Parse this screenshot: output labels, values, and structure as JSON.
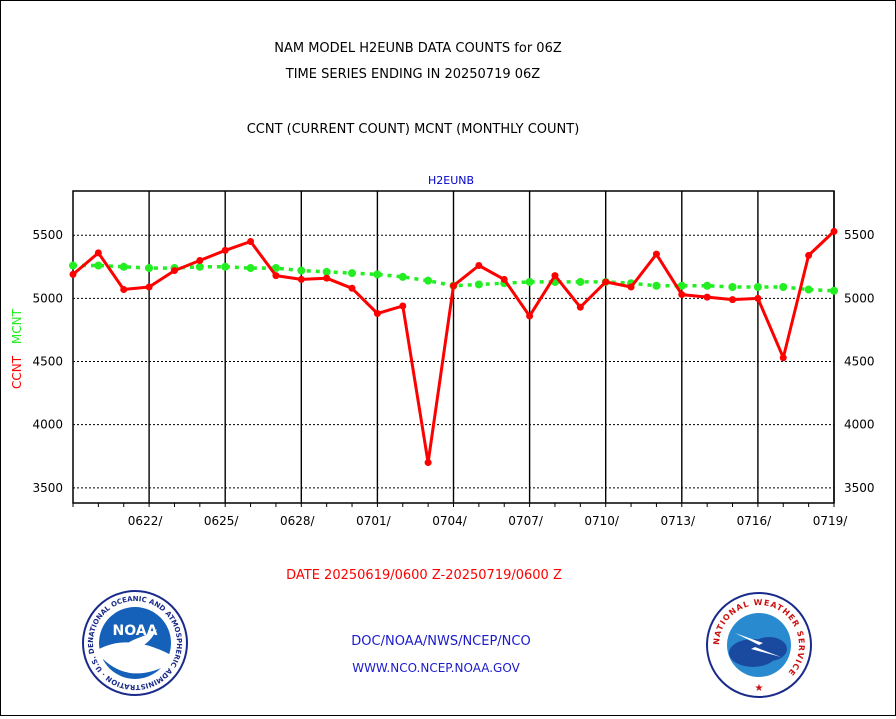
{
  "header": {
    "title_line1": "NAM MODEL H2EUNB DATA COUNTS for 06Z",
    "title_line2": "TIME SERIES ENDING IN 20250719 06Z",
    "subtitle": "CCNT (CURRENT COUNT) MCNT (MONTHLY COUNT)"
  },
  "footer": {
    "date_range": "DATE 20250619/0600 Z-20250719/0600 Z",
    "org_line": "DOC/NOAA/NWS/NCEP/NCO",
    "url_line": "WWW.NCO.NCEP.NOAA.GOV"
  },
  "logos": {
    "noaa_center": "NOAA",
    "noaa_ring_text": "NATIONAL OCEANIC AND ATMOSPHERIC ADMINISTRATION · U.S. DEPARTMENT OF COMMERCE",
    "nws_ring_text": "NATIONAL WEATHER SERVICE"
  },
  "colors": {
    "ccnt": "#ff0000",
    "mcnt": "#22ee22",
    "station": "#0000cc",
    "footer_blue": "#1a1acc",
    "date_red": "#ff0000"
  },
  "chart_data": {
    "type": "line",
    "title": "H2EUNB",
    "ylabel_parts": [
      {
        "text": "CCNT",
        "color": "#ff0000"
      },
      {
        "text": "MCNT",
        "color": "#22ee22"
      }
    ],
    "x_tick_labels": [
      "0622/",
      "0625/",
      "0628/",
      "0701/",
      "0704/",
      "0707/",
      "0710/",
      "0713/",
      "0716/",
      "0719/"
    ],
    "x_tick_days": [
      3,
      6,
      9,
      12,
      15,
      18,
      21,
      24,
      27,
      30
    ],
    "x_range_days": [
      0,
      30
    ],
    "ylim": [
      3380,
      5850
    ],
    "y_ticks": [
      3500,
      4000,
      4500,
      5000,
      5500
    ],
    "grid": true,
    "series": [
      {
        "name": "CCNT",
        "color": "#ff0000",
        "x_days": [
          0,
          1,
          2,
          3,
          4,
          5,
          6,
          7,
          8,
          9,
          10,
          11,
          12,
          13,
          14,
          15,
          16,
          17,
          18,
          19,
          20,
          21,
          22,
          23,
          24,
          25,
          26,
          27,
          28,
          29,
          30
        ],
        "values": [
          5190,
          5360,
          5070,
          5090,
          5220,
          5300,
          5380,
          5450,
          5180,
          5150,
          5160,
          5080,
          4880,
          4940,
          3700,
          5100,
          5260,
          5150,
          4860,
          5180,
          4930,
          5130,
          5090,
          5350,
          5030,
          5010,
          4990,
          5000,
          4530,
          5340,
          5530
        ]
      },
      {
        "name": "MCNT",
        "color": "#22ee22",
        "x_days": [
          0,
          1,
          2,
          3,
          4,
          5,
          6,
          7,
          8,
          9,
          10,
          11,
          12,
          13,
          14,
          15,
          16,
          17,
          18,
          19,
          20,
          21,
          22,
          23,
          24,
          25,
          26,
          27,
          28,
          29,
          30
        ],
        "values": [
          5260,
          5260,
          5250,
          5240,
          5240,
          5250,
          5250,
          5240,
          5240,
          5220,
          5210,
          5200,
          5190,
          5170,
          5140,
          5100,
          5110,
          5120,
          5130,
          5130,
          5130,
          5130,
          5120,
          5100,
          5100,
          5100,
          5090,
          5090,
          5090,
          5070,
          5060
        ]
      }
    ]
  }
}
